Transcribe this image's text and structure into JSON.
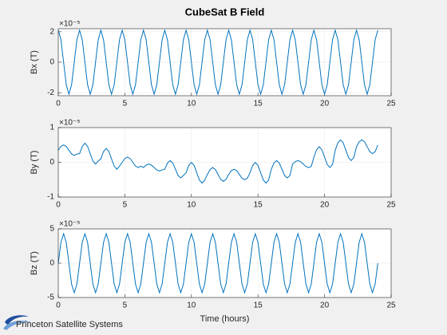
{
  "chart_data": [
    {
      "type": "line",
      "title": "CubeSat B Field",
      "ylabel": "Bx (T)",
      "exponent_label": "×10⁻⁵",
      "x": [
        0,
        0.2,
        0.4,
        0.6,
        0.8,
        1,
        1.2,
        1.4,
        1.6,
        1.8,
        2,
        2.2,
        2.4,
        2.6,
        2.8,
        3,
        3.2,
        3.4,
        3.6,
        3.8,
        4,
        4.2,
        4.4,
        4.6,
        4.8,
        5,
        5.2,
        5.4,
        5.6,
        5.8,
        6,
        6.2,
        6.4,
        6.6,
        6.8,
        7,
        7.2,
        7.4,
        7.6,
        7.8,
        8,
        8.2,
        8.4,
        8.6,
        8.8,
        9,
        9.2,
        9.4,
        9.6,
        9.8,
        10,
        10.2,
        10.4,
        10.6,
        10.8,
        11,
        11.2,
        11.4,
        11.6,
        11.8,
        12,
        12.2,
        12.4,
        12.6,
        12.8,
        13,
        13.2,
        13.4,
        13.6,
        13.8,
        14,
        14.2,
        14.4,
        14.6,
        14.8,
        15,
        15.2,
        15.4,
        15.6,
        15.8,
        16,
        16.2,
        16.4,
        16.6,
        16.8,
        17,
        17.2,
        17.4,
        17.6,
        17.8,
        18,
        18.2,
        18.4,
        18.6,
        18.8,
        19,
        19.2,
        19.4,
        19.6,
        19.8,
        20,
        20.2,
        20.4,
        20.6,
        20.8,
        21,
        21.2,
        21.4,
        21.6,
        21.8,
        22,
        22.2,
        22.4,
        22.6,
        22.8,
        23,
        23.2,
        23.4,
        23.6,
        23.8,
        24
      ],
      "series": [
        {
          "color": "#0072bd",
          "values": [
            2.1,
            1.48,
            0,
            -1.48,
            -2.1,
            -1.48,
            0,
            1.48,
            2.1,
            1.48,
            0,
            -1.48,
            -2.1,
            -1.48,
            0,
            1.48,
            2.1,
            1.48,
            0,
            -1.48,
            -2.1,
            -1.48,
            0,
            1.48,
            2.1,
            1.48,
            0,
            -1.48,
            -2.1,
            -1.48,
            0,
            1.48,
            2.1,
            1.48,
            0,
            -1.48,
            -2.1,
            -1.48,
            0,
            1.48,
            2.1,
            1.48,
            0,
            -1.48,
            -2.1,
            -1.48,
            0,
            1.48,
            2.1,
            1.48,
            0,
            -1.48,
            -2.1,
            -1.48,
            0,
            1.48,
            2.1,
            1.48,
            0,
            -1.48,
            -2.1,
            -1.48,
            0,
            1.48,
            2.1,
            1.48,
            0,
            -1.48,
            -2.1,
            -1.48,
            0,
            1.48,
            2.1,
            1.48,
            0,
            -1.48,
            -2.1,
            -1.48,
            0,
            1.48,
            2.1,
            1.48,
            0,
            -1.48,
            -2.1,
            -1.48,
            0,
            1.48,
            2.1,
            1.48,
            0,
            -1.48,
            -2.1,
            -1.48,
            0,
            1.48,
            2.1,
            1.48,
            0,
            -1.48,
            -2.1,
            -1.48,
            0,
            1.48,
            2.1,
            1.48,
            0,
            -1.48,
            -2.1,
            -1.48,
            0,
            1.48,
            2.1,
            1.48,
            0,
            -1.48,
            -2.1,
            -1.48,
            0,
            1.48,
            2.1
          ]
        }
      ],
      "xlim": [
        0,
        25
      ],
      "xticks": [
        0,
        5,
        10,
        15,
        20,
        25
      ],
      "ylim": [
        -2.2,
        2.2
      ],
      "yticks": [
        -2,
        0,
        2
      ],
      "grid": true
    },
    {
      "type": "line",
      "ylabel": "By (T)",
      "exponent_label": "×10⁻⁵",
      "x": [
        0,
        0.2,
        0.4,
        0.6,
        0.8,
        1,
        1.2,
        1.4,
        1.6,
        1.8,
        2,
        2.2,
        2.4,
        2.6,
        2.8,
        3,
        3.2,
        3.4,
        3.6,
        3.8,
        4,
        4.2,
        4.4,
        4.6,
        4.8,
        5,
        5.2,
        5.4,
        5.6,
        5.8,
        6,
        6.2,
        6.4,
        6.6,
        6.8,
        7,
        7.2,
        7.4,
        7.6,
        7.8,
        8,
        8.2,
        8.4,
        8.6,
        8.8,
        9,
        9.2,
        9.4,
        9.6,
        9.8,
        10,
        10.2,
        10.4,
        10.6,
        10.8,
        11,
        11.2,
        11.4,
        11.6,
        11.8,
        12,
        12.2,
        12.4,
        12.6,
        12.8,
        13,
        13.2,
        13.4,
        13.6,
        13.8,
        14,
        14.2,
        14.4,
        14.6,
        14.8,
        15,
        15.2,
        15.4,
        15.6,
        15.8,
        16,
        16.2,
        16.4,
        16.6,
        16.8,
        17,
        17.2,
        17.4,
        17.6,
        17.8,
        18,
        18.2,
        18.4,
        18.6,
        18.8,
        19,
        19.2,
        19.4,
        19.6,
        19.8,
        20,
        20.2,
        20.4,
        20.6,
        20.8,
        21,
        21.2,
        21.4,
        21.6,
        21.8,
        22,
        22.2,
        22.4,
        22.6,
        22.8,
        23,
        23.2,
        23.4,
        23.6,
        23.8,
        24
      ],
      "series": [
        {
          "color": "#0072bd",
          "values": [
            0.35,
            0.46,
            0.5,
            0.46,
            0.35,
            0.24,
            0.2,
            0.24,
            0.25,
            0.46,
            0.55,
            0.46,
            0.25,
            0.04,
            -0.05,
            0.04,
            0.1,
            0.31,
            0.4,
            0.31,
            0.1,
            -0.11,
            -0.2,
            -0.11,
            0,
            0.11,
            0.15,
            0.11,
            0,
            -0.11,
            -0.15,
            -0.11,
            -0.15,
            -0.08,
            -0.05,
            -0.08,
            -0.15,
            -0.22,
            -0.25,
            -0.22,
            -0.2,
            -0.02,
            0.05,
            -0.02,
            -0.2,
            -0.38,
            -0.45,
            -0.38,
            -0.3,
            -0.09,
            0,
            -0.09,
            -0.3,
            -0.51,
            -0.6,
            -0.51,
            -0.35,
            -0.21,
            -0.15,
            -0.21,
            -0.35,
            -0.49,
            -0.55,
            -0.49,
            -0.35,
            -0.24,
            -0.2,
            -0.24,
            -0.35,
            -0.46,
            -0.5,
            -0.46,
            -0.3,
            -0.09,
            0,
            -0.09,
            -0.3,
            -0.51,
            -0.6,
            -0.51,
            -0.2,
            -0.02,
            0.05,
            -0.02,
            -0.2,
            -0.38,
            -0.45,
            -0.38,
            -0.05,
            0.02,
            0.05,
            0.02,
            -0.05,
            -0.12,
            -0.15,
            -0.12,
            0.15,
            0.36,
            0.45,
            0.36,
            0.15,
            -0.06,
            -0.15,
            -0.06,
            0.35,
            0.56,
            0.65,
            0.56,
            0.35,
            0.14,
            0.05,
            0.14,
            0.45,
            0.59,
            0.65,
            0.59,
            0.45,
            0.31,
            0.25,
            0.31,
            0.5
          ]
        }
      ],
      "xlim": [
        0,
        25
      ],
      "xticks": [
        0,
        5,
        10,
        15,
        20,
        25
      ],
      "ylim": [
        -1,
        1
      ],
      "yticks": [
        -1,
        0,
        1
      ],
      "grid": true
    },
    {
      "type": "line",
      "ylabel": "Bz (T)",
      "exponent_label": "×10⁻⁵",
      "xlabel": "Time (hours)",
      "x": [
        0,
        0.2,
        0.4,
        0.6,
        0.8,
        1,
        1.2,
        1.4,
        1.6,
        1.8,
        2,
        2.2,
        2.4,
        2.6,
        2.8,
        3,
        3.2,
        3.4,
        3.6,
        3.8,
        4,
        4.2,
        4.4,
        4.6,
        4.8,
        5,
        5.2,
        5.4,
        5.6,
        5.8,
        6,
        6.2,
        6.4,
        6.6,
        6.8,
        7,
        7.2,
        7.4,
        7.6,
        7.8,
        8,
        8.2,
        8.4,
        8.6,
        8.8,
        9,
        9.2,
        9.4,
        9.6,
        9.8,
        10,
        10.2,
        10.4,
        10.6,
        10.8,
        11,
        11.2,
        11.4,
        11.6,
        11.8,
        12,
        12.2,
        12.4,
        12.6,
        12.8,
        13,
        13.2,
        13.4,
        13.6,
        13.8,
        14,
        14.2,
        14.4,
        14.6,
        14.8,
        15,
        15.2,
        15.4,
        15.6,
        15.8,
        16,
        16.2,
        16.4,
        16.6,
        16.8,
        17,
        17.2,
        17.4,
        17.6,
        17.8,
        18,
        18.2,
        18.4,
        18.6,
        18.8,
        19,
        19.2,
        19.4,
        19.6,
        19.8,
        20,
        20.2,
        20.4,
        20.6,
        20.8,
        21,
        21.2,
        21.4,
        21.6,
        21.8,
        22,
        22.2,
        22.4,
        22.6,
        22.8,
        23,
        23.2,
        23.4,
        23.6,
        23.8,
        24
      ],
      "series": [
        {
          "color": "#0072bd",
          "values": [
            0,
            3.04,
            4.3,
            3.04,
            0,
            -3.04,
            -4.3,
            -3.04,
            0,
            3.04,
            4.3,
            3.04,
            0,
            -3.04,
            -4.3,
            -3.04,
            0,
            3.04,
            4.3,
            3.04,
            0,
            -3.04,
            -4.3,
            -3.04,
            0,
            3.04,
            4.3,
            3.04,
            0,
            -3.04,
            -4.3,
            -3.04,
            0,
            3.04,
            4.3,
            3.04,
            0,
            -3.04,
            -4.3,
            -3.04,
            0,
            3.04,
            4.3,
            3.04,
            0,
            -3.04,
            -4.3,
            -3.04,
            0,
            3.04,
            4.3,
            3.04,
            0,
            -3.04,
            -4.3,
            -3.04,
            0,
            3.04,
            4.3,
            3.04,
            0,
            -3.04,
            -4.3,
            -3.04,
            0,
            3.04,
            4.3,
            3.04,
            0,
            -3.04,
            -4.3,
            -3.04,
            0,
            3.04,
            4.3,
            3.04,
            0,
            -3.04,
            -4.3,
            -3.04,
            0,
            3.04,
            4.3,
            3.04,
            0,
            -3.04,
            -4.3,
            -3.04,
            0,
            3.04,
            4.3,
            3.04,
            0,
            -3.04,
            -4.3,
            -3.04,
            0,
            3.04,
            4.3,
            3.04,
            0,
            -3.04,
            -4.3,
            -3.04,
            0,
            3.04,
            4.3,
            3.04,
            0,
            -3.04,
            -4.3,
            -3.04,
            0,
            3.04,
            4.3,
            3.04,
            0,
            -3.04,
            -4.3,
            -3.04,
            0
          ]
        }
      ],
      "xlim": [
        0,
        25
      ],
      "xticks": [
        0,
        5,
        10,
        15,
        20,
        25
      ],
      "ylim": [
        -5,
        5
      ],
      "yticks": [
        -5,
        0,
        5
      ],
      "grid": true
    }
  ],
  "footer": "Princeton Satellite Systems"
}
